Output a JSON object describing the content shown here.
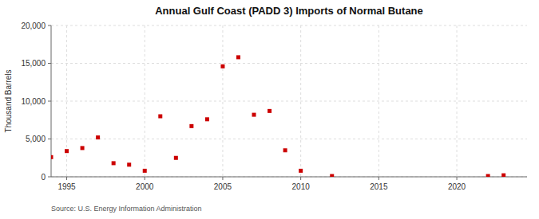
{
  "chart_data": {
    "type": "scatter",
    "title": "Annual Gulf Coast (PADD 3) Imports of Normal Butane",
    "ylabel": "Thousand Barrels",
    "source": "Source: U.S. Energy Information Administration",
    "x": [
      1994,
      1995,
      1996,
      1997,
      1998,
      1999,
      2000,
      2001,
      2002,
      2003,
      2004,
      2005,
      2006,
      2007,
      2008,
      2009,
      2010,
      2012,
      2022,
      2023
    ],
    "values": [
      2600,
      3400,
      3800,
      5200,
      1800,
      1600,
      800,
      8000,
      2500,
      6700,
      7600,
      14600,
      15800,
      8200,
      8700,
      3500,
      800,
      100,
      100,
      200
    ],
    "color": "#cc0000",
    "marker": "square",
    "xlim": [
      1994.0,
      2024.5
    ],
    "ylim": [
      0,
      20000
    ],
    "xticks": [
      1995,
      2000,
      2005,
      2010,
      2015,
      2020
    ],
    "yticks": [
      0,
      {
        "value": 5000,
        "label": "5,000"
      },
      {
        "value": 10000,
        "label": "10,000"
      },
      {
        "value": 15000,
        "label": "15,000"
      },
      {
        "value": 20000,
        "label": "20,000"
      }
    ],
    "grid": true
  }
}
